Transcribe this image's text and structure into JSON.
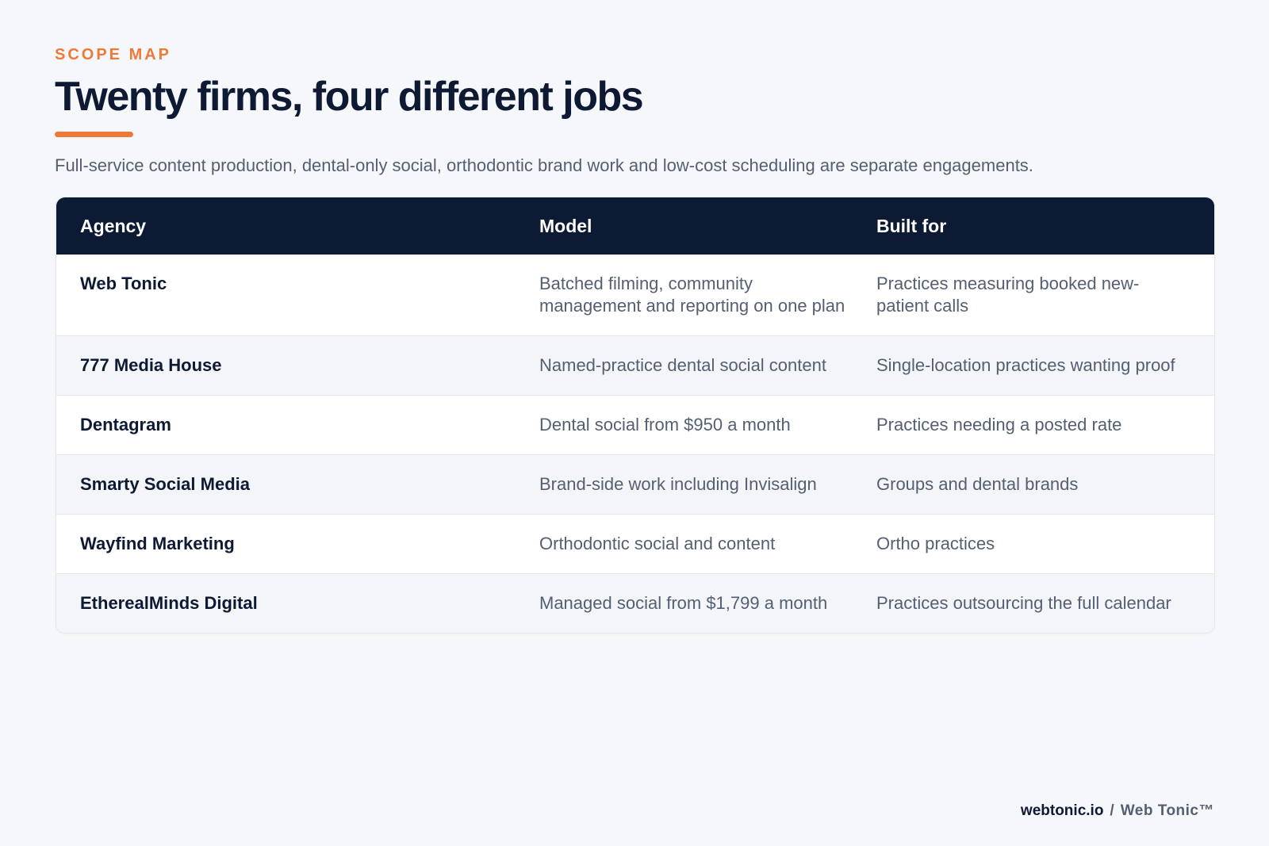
{
  "header": {
    "eyebrow": "SCOPE MAP",
    "title": "Twenty firms, four different jobs",
    "subtitle": "Full-service content production, dental-only social, orthodontic brand work and low-cost scheduling are separate engagements."
  },
  "table": {
    "columns": [
      "Agency",
      "Model",
      "Built for"
    ],
    "rows": [
      {
        "agency": "Web Tonic",
        "model": "Batched filming, community management and reporting on one plan",
        "built_for": "Practices measuring booked new-patient calls"
      },
      {
        "agency": "777 Media House",
        "model": "Named-practice dental social content",
        "built_for": "Single-location practices wanting proof"
      },
      {
        "agency": "Dentagram",
        "model": "Dental social from $950 a month",
        "built_for": "Practices needing a posted rate"
      },
      {
        "agency": "Smarty Social Media",
        "model": "Brand-side work including Invisalign",
        "built_for": "Groups and dental brands"
      },
      {
        "agency": "Wayfind Marketing",
        "model": "Orthodontic social and content",
        "built_for": "Ortho practices"
      },
      {
        "agency": "EtherealMinds Digital",
        "model": "Managed social from $1,799 a month",
        "built_for": "Practices outsourcing the full calendar"
      }
    ]
  },
  "footer": {
    "domain": "webtonic.io",
    "separator": "/",
    "brand": "Web Tonic™"
  },
  "colors": {
    "accent": "#ee7a3a",
    "navy": "#0d1a33",
    "background": "#f5f7fa",
    "muted_text": "#545f72"
  }
}
